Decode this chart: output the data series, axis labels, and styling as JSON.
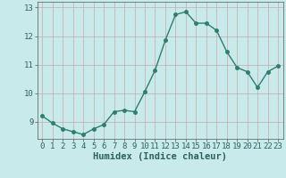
{
  "title": "",
  "xlabel": "Humidex (Indice chaleur)",
  "x": [
    0,
    1,
    2,
    3,
    4,
    5,
    6,
    7,
    8,
    9,
    10,
    11,
    12,
    13,
    14,
    15,
    16,
    17,
    18,
    19,
    20,
    21,
    22,
    23
  ],
  "y": [
    9.2,
    8.95,
    8.75,
    8.65,
    8.55,
    8.75,
    8.9,
    9.35,
    9.4,
    9.35,
    10.05,
    10.8,
    11.85,
    12.75,
    12.85,
    12.45,
    12.45,
    12.2,
    11.45,
    10.9,
    10.75,
    10.2,
    10.75,
    10.95
  ],
  "line_color": "#2e7d6e",
  "marker": "o",
  "marker_size": 2.5,
  "bg_color": "#c8eaea",
  "grid_color": "#c8a8a8",
  "ylim": [
    8.4,
    13.2
  ],
  "xlim": [
    -0.5,
    23.5
  ],
  "yticks": [
    9,
    10,
    11,
    12,
    13
  ],
  "xticks": [
    0,
    1,
    2,
    3,
    4,
    5,
    6,
    7,
    8,
    9,
    10,
    11,
    12,
    13,
    14,
    15,
    16,
    17,
    18,
    19,
    20,
    21,
    22,
    23
  ],
  "tick_fontsize": 6.5,
  "xlabel_fontsize": 7.5,
  "line_width": 1.0
}
